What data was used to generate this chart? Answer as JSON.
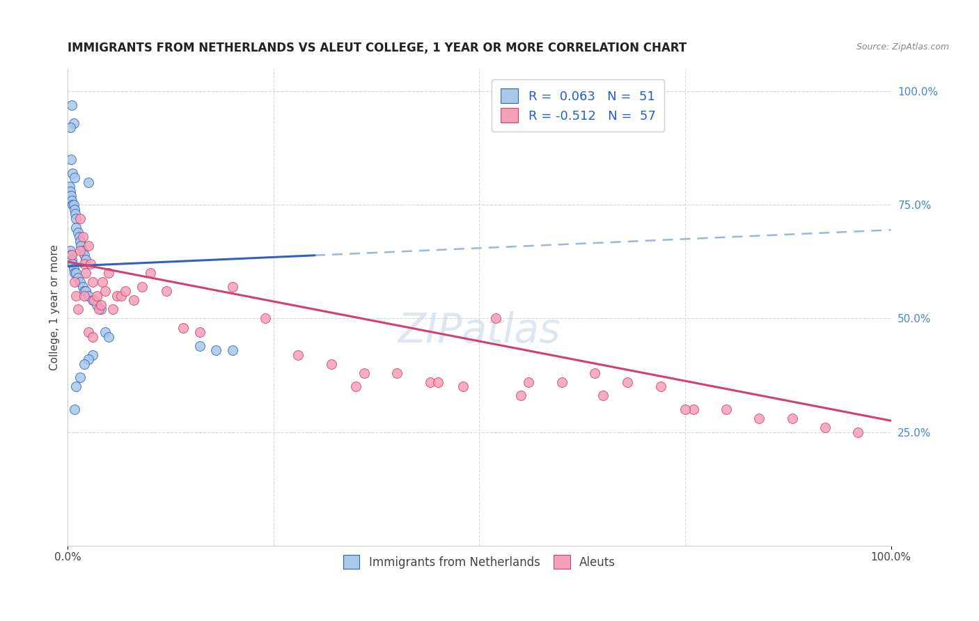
{
  "title": "IMMIGRANTS FROM NETHERLANDS VS ALEUT COLLEGE, 1 YEAR OR MORE CORRELATION CHART",
  "source": "Source: ZipAtlas.com",
  "ylabel": "College, 1 year or more",
  "ylabel_right_ticks": [
    "100.0%",
    "75.0%",
    "50.0%",
    "25.0%"
  ],
  "ylabel_right_values": [
    1.0,
    0.75,
    0.5,
    0.25
  ],
  "legend_blue_r": "R = 0.063",
  "legend_blue_n": "N = 51",
  "legend_pink_r": "R = -0.512",
  "legend_pink_n": "N = 57",
  "blue_color": "#a8c8e8",
  "pink_color": "#f4a0b8",
  "trendline_blue": "#3060c0",
  "trendline_pink": "#d04070",
  "trendline_dashed_color": "#9ab8d8",
  "background_color": "#ffffff",
  "grid_color": "#d8d8d8",
  "blue_scatter_x": [
    0.005,
    0.007,
    0.003,
    0.004,
    0.006,
    0.008,
    0.002,
    0.003,
    0.004,
    0.005,
    0.006,
    0.007,
    0.008,
    0.009,
    0.01,
    0.01,
    0.012,
    0.014,
    0.015,
    0.016,
    0.018,
    0.02,
    0.022,
    0.025,
    0.003,
    0.004,
    0.005,
    0.006,
    0.007,
    0.008,
    0.01,
    0.012,
    0.015,
    0.018,
    0.02,
    0.022,
    0.025,
    0.03,
    0.035,
    0.04,
    0.045,
    0.05,
    0.16,
    0.18,
    0.2,
    0.03,
    0.025,
    0.02,
    0.015,
    0.01,
    0.008
  ],
  "blue_scatter_y": [
    0.97,
    0.93,
    0.92,
    0.85,
    0.82,
    0.81,
    0.79,
    0.78,
    0.77,
    0.76,
    0.75,
    0.75,
    0.74,
    0.73,
    0.72,
    0.7,
    0.69,
    0.68,
    0.67,
    0.66,
    0.65,
    0.64,
    0.63,
    0.8,
    0.65,
    0.64,
    0.63,
    0.62,
    0.61,
    0.6,
    0.6,
    0.59,
    0.58,
    0.57,
    0.56,
    0.56,
    0.55,
    0.54,
    0.53,
    0.52,
    0.47,
    0.46,
    0.44,
    0.43,
    0.43,
    0.42,
    0.41,
    0.4,
    0.37,
    0.35,
    0.3
  ],
  "pink_scatter_x": [
    0.005,
    0.008,
    0.01,
    0.012,
    0.015,
    0.018,
    0.02,
    0.022,
    0.025,
    0.028,
    0.03,
    0.032,
    0.035,
    0.038,
    0.04,
    0.042,
    0.045,
    0.05,
    0.055,
    0.06,
    0.065,
    0.07,
    0.08,
    0.09,
    0.1,
    0.12,
    0.14,
    0.16,
    0.2,
    0.24,
    0.28,
    0.32,
    0.36,
    0.4,
    0.44,
    0.48,
    0.52,
    0.56,
    0.6,
    0.64,
    0.68,
    0.72,
    0.76,
    0.8,
    0.84,
    0.88,
    0.92,
    0.96,
    0.015,
    0.02,
    0.025,
    0.03,
    0.35,
    0.45,
    0.55,
    0.65,
    0.75
  ],
  "pink_scatter_y": [
    0.64,
    0.58,
    0.55,
    0.52,
    0.72,
    0.68,
    0.62,
    0.6,
    0.66,
    0.62,
    0.58,
    0.54,
    0.55,
    0.52,
    0.53,
    0.58,
    0.56,
    0.6,
    0.52,
    0.55,
    0.55,
    0.56,
    0.54,
    0.57,
    0.6,
    0.56,
    0.48,
    0.47,
    0.57,
    0.5,
    0.42,
    0.4,
    0.38,
    0.38,
    0.36,
    0.35,
    0.5,
    0.36,
    0.36,
    0.38,
    0.36,
    0.35,
    0.3,
    0.3,
    0.28,
    0.28,
    0.26,
    0.25,
    0.65,
    0.55,
    0.47,
    0.46,
    0.35,
    0.36,
    0.33,
    0.33,
    0.3
  ],
  "blue_trendline_x0": 0.0,
  "blue_trendline_x_solid_end": 0.3,
  "blue_trendline_x1": 1.0,
  "blue_trendline_y0": 0.615,
  "blue_trendline_y1": 0.695,
  "pink_trendline_x0": 0.0,
  "pink_trendline_x1": 1.0,
  "pink_trendline_y0": 0.625,
  "pink_trendline_y1": 0.275,
  "xlim": [
    0.0,
    1.0
  ],
  "ylim": [
    0.0,
    1.05
  ],
  "figsize": [
    14.06,
    8.92
  ],
  "dpi": 100
}
